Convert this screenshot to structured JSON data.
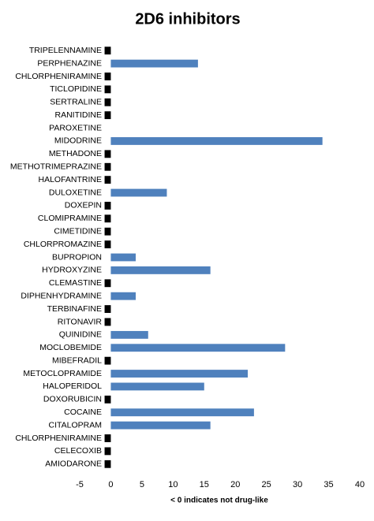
{
  "chart_data": {
    "type": "hbar",
    "title": "2D6 inhibitors",
    "x_label": "< 0 indicates not drug-like",
    "categories": [
      "TRIPELENNAMINE",
      "PERPHENAZINE",
      "CHLORPHENIRAMINE",
      "TICLOPIDINE",
      "SERTRALINE",
      "RANITIDINE",
      "PAROXETINE",
      "MIDODRINE",
      "METHADONE",
      "METHOTRIMEPRAZINE",
      "HALOFANTRINE",
      "DULOXETINE",
      "DOXEPIN",
      "CLOMIPRAMINE",
      "CIMETIDINE",
      "CHLORPROMAZINE",
      "BUPROPION",
      "HYDROXYZINE",
      "CLEMASTINE",
      "DIPHENHYDRAMINE",
      "TERBINAFINE",
      "RITONAVIR",
      "QUINIDINE",
      "MOCLOBEMIDE",
      "MIBEFRADIL",
      "METOCLOPRAMIDE",
      "HALOPERIDOL",
      "DOXORUBICIN",
      "COCAINE",
      "CITALOPRAM",
      "CHLORPHENIRAMINE",
      "CELECOXIB",
      "AMIODARONE"
    ],
    "values": [
      -1,
      14,
      -1,
      -1,
      -1,
      -1,
      0,
      34,
      -1,
      -1,
      -1,
      9,
      -1,
      -1,
      -1,
      -1,
      4,
      16,
      -1,
      4,
      -1,
      -1,
      6,
      28,
      -1,
      22,
      15,
      -1,
      23,
      16,
      -1,
      -1,
      -1
    ],
    "color": "#4f81bd",
    "negative_color": "#000000",
    "xlim": [
      -5,
      40
    ],
    "xticks": [
      -5,
      0,
      5,
      10,
      15,
      20,
      25,
      30,
      35,
      40
    ],
    "grid": false
  }
}
